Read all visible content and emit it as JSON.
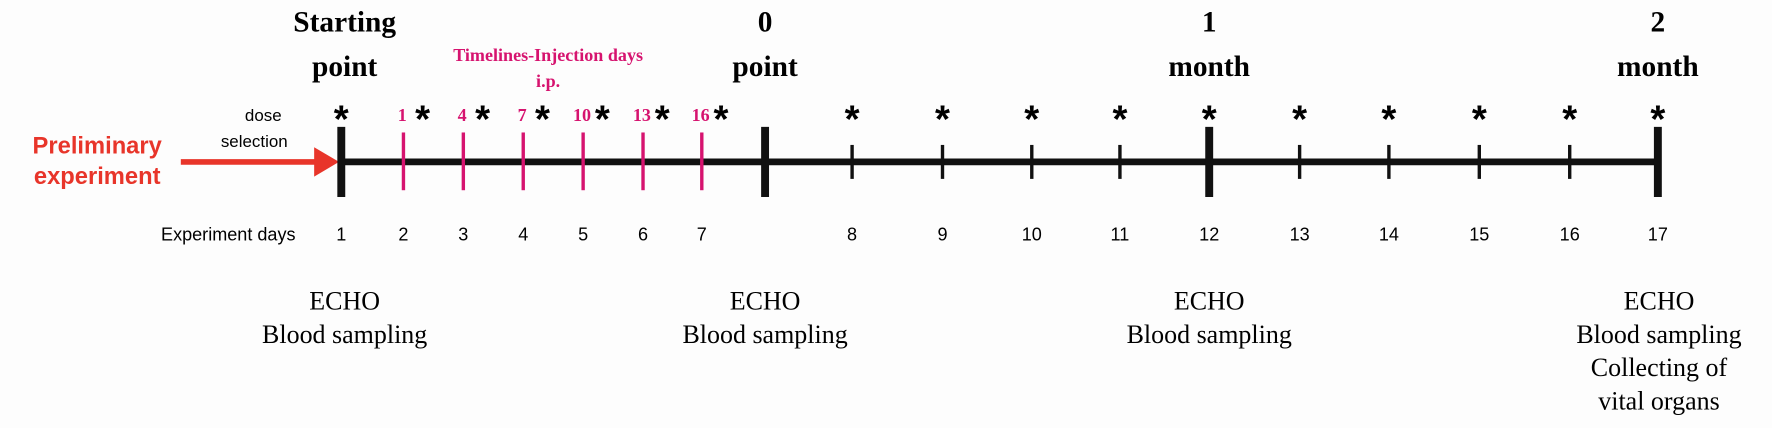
{
  "milestones": [
    {
      "title": "Starting",
      "subtitle": "point"
    },
    {
      "title": "0",
      "subtitle": "point"
    },
    {
      "title": "1",
      "subtitle": "month"
    },
    {
      "title": "2",
      "subtitle": "month"
    }
  ],
  "injection_title": "Timelines-Injection days",
  "injection_subtitle": "i.p.",
  "injection_days": [
    "1",
    "4",
    "7",
    "10",
    "13",
    "16"
  ],
  "star": "*",
  "preliminary": [
    "Preliminary",
    "experiment"
  ],
  "dose_selection": [
    "dose",
    "selection"
  ],
  "days_label": "Experiment days",
  "days": [
    "1",
    "2",
    "3",
    "4",
    "5",
    "6",
    "7",
    "8",
    "9",
    "10",
    "11",
    "12",
    "13",
    "14",
    "15",
    "16",
    "17"
  ],
  "notes": [
    [
      "ECHO",
      "Blood sampling"
    ],
    [
      "ECHO",
      "Blood sampling"
    ],
    [
      "ECHO",
      "Blood sampling"
    ],
    [
      "ECHO",
      "Blood sampling",
      "Collecting of",
      "vital organs"
    ]
  ]
}
